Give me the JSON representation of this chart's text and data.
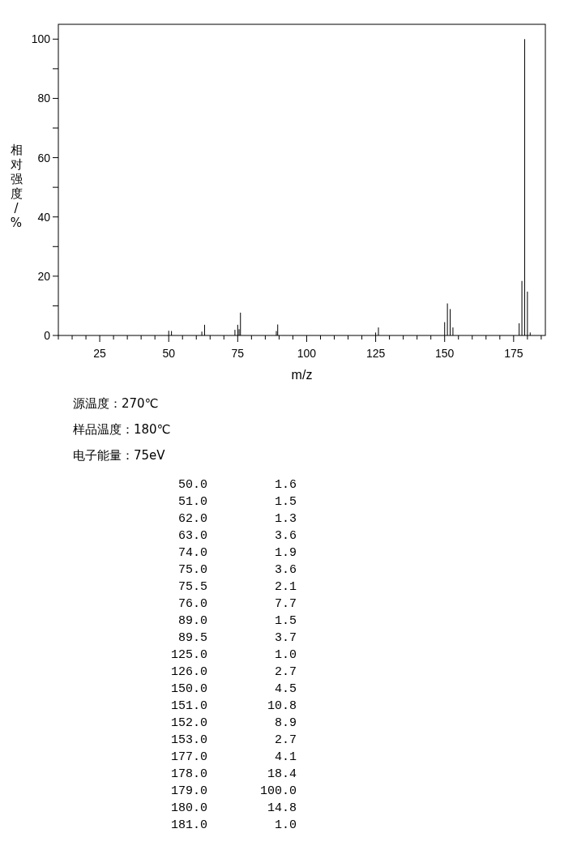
{
  "chart_data": {
    "type": "bar",
    "xlabel": "m/z",
    "ylabel": "相对强度/%",
    "x": [
      50,
      51,
      62,
      63,
      74,
      75,
      75.5,
      76,
      89,
      89.5,
      125,
      126,
      150,
      151,
      152,
      153,
      177,
      178,
      179,
      180,
      181
    ],
    "values": [
      1.6,
      1.5,
      1.3,
      3.6,
      1.9,
      3.6,
      2.1,
      7.7,
      1.5,
      3.7,
      1.0,
      2.7,
      4.5,
      10.8,
      8.9,
      2.7,
      4.1,
      18.4,
      100.0,
      14.8,
      1.0
    ],
    "color": "#000000",
    "xlim": [
      10,
      186.5
    ],
    "ylim": [
      0,
      105
    ],
    "xticks": [
      {
        "value": 10,
        "label": null
      },
      {
        "value": 15,
        "label": null
      },
      {
        "value": 20,
        "label": null
      },
      25,
      {
        "value": 30,
        "label": null
      },
      {
        "value": 35,
        "label": null
      },
      {
        "value": 40,
        "label": null
      },
      {
        "value": 45,
        "label": null
      },
      50,
      {
        "value": 55,
        "label": null
      },
      {
        "value": 60,
        "label": null
      },
      {
        "value": 65,
        "label": null
      },
      {
        "value": 70,
        "label": null
      },
      75,
      {
        "value": 80,
        "label": null
      },
      {
        "value": 85,
        "label": null
      },
      {
        "value": 90,
        "label": null
      },
      {
        "value": 95,
        "label": null
      },
      100,
      {
        "value": 105,
        "label": null
      },
      {
        "value": 110,
        "label": null
      },
      {
        "value": 115,
        "label": null
      },
      {
        "value": 120,
        "label": null
      },
      125,
      {
        "value": 130,
        "label": null
      },
      {
        "value": 135,
        "label": null
      },
      {
        "value": 140,
        "label": null
      },
      {
        "value": 145,
        "label": null
      },
      150,
      {
        "value": 155,
        "label": null
      },
      {
        "value": 160,
        "label": null
      },
      {
        "value": 165,
        "label": null
      },
      {
        "value": 170,
        "label": null
      },
      175,
      {
        "value": 180,
        "label": null
      },
      {
        "value": 185,
        "label": null
      }
    ],
    "yticks": [
      0,
      {
        "value": 10,
        "label": null
      },
      20,
      {
        "value": 30,
        "label": null
      },
      40,
      {
        "value": 50,
        "label": null
      },
      60,
      {
        "value": 70,
        "label": null
      },
      80,
      {
        "value": 90,
        "label": null
      },
      100
    ],
    "annotations": [
      "源温度：270℃",
      "样品温度：180℃",
      "电子能量：75eV",
      "50.0",
      "1.6",
      "51.0",
      "1.5",
      "62.0",
      "1.3",
      "63.0",
      "3.6",
      "74.0",
      "1.9",
      "75.0",
      "3.6",
      "75.5",
      "2.1",
      "76.0",
      "7.7",
      "89.0",
      "1.5",
      "89.5",
      "3.7",
      "125.0",
      "1.0",
      "126.0",
      "2.7",
      "150.0",
      "4.5",
      "151.0",
      "10.8",
      "152.0",
      "8.9",
      "153.0",
      "2.7",
      "177.0",
      "4.1",
      "178.0",
      "18.4",
      "179.0",
      "100.0",
      "180.0",
      "14.8",
      "181.0",
      "1.0"
    ],
    "grid": false
  }
}
